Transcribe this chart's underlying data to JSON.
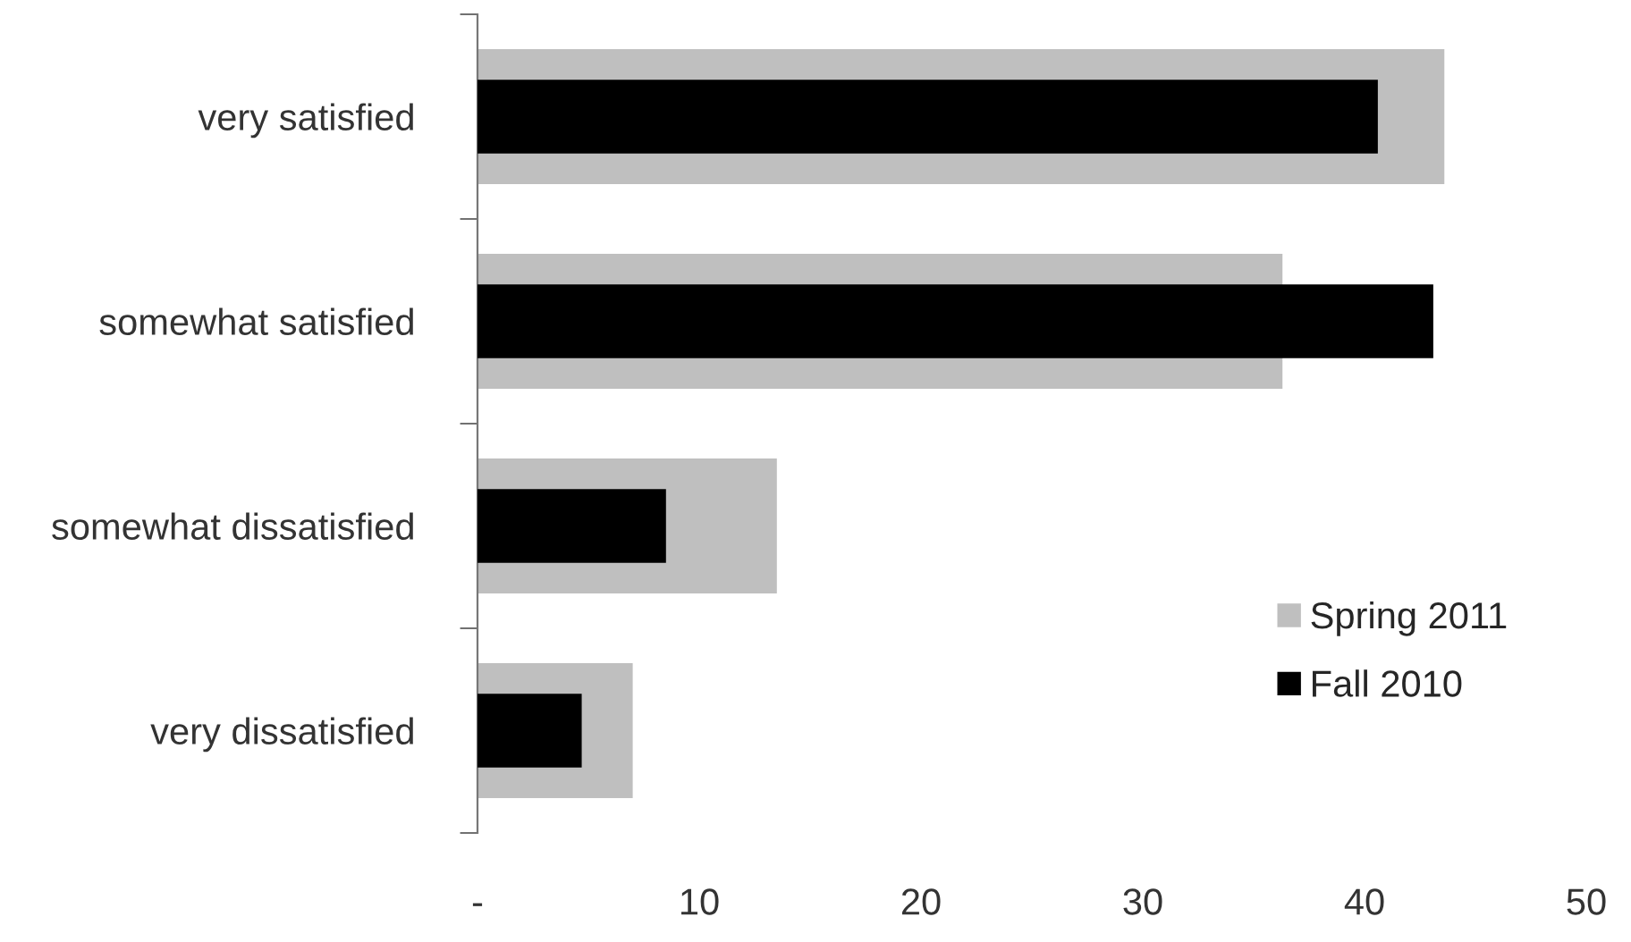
{
  "chart_data": {
    "type": "bar",
    "orientation": "horizontal",
    "categories": [
      "very satisfied",
      "somewhat satisfied",
      "somewhat dissatisfied",
      "very dissatisfied"
    ],
    "series": [
      {
        "name": "Spring 2011",
        "color": "#bfbfbf",
        "values": [
          43.6,
          36.3,
          13.5,
          7.0
        ]
      },
      {
        "name": "Fall 2010",
        "color": "#000000",
        "values": [
          40.6,
          43.1,
          8.5,
          4.7
        ]
      }
    ],
    "xlim": [
      0,
      50
    ],
    "xticks": [
      {
        "value": 0,
        "label": "-"
      },
      10,
      20,
      30,
      40,
      50
    ],
    "legend": "right",
    "grid": false
  }
}
